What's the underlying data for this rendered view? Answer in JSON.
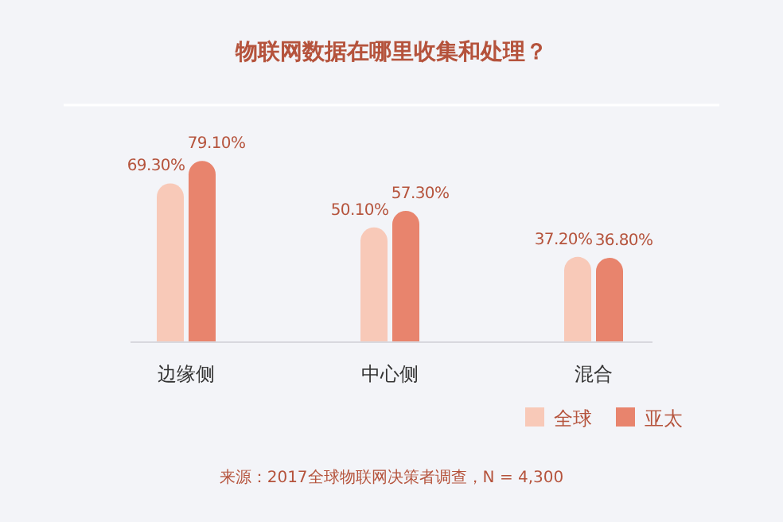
{
  "chart_data": {
    "type": "bar",
    "title": "物联网数据在哪里收集和处理？",
    "categories": [
      "边缘侧",
      "中心侧",
      "混合"
    ],
    "series": [
      {
        "name": "全球",
        "color": "#f8c9b8",
        "values": [
          69.3,
          50.1,
          37.2
        ],
        "value_labels": [
          "69.30%",
          "50.10%",
          "37.20%"
        ]
      },
      {
        "name": "亚太",
        "color": "#e8846d",
        "values": [
          79.1,
          57.3,
          36.8
        ],
        "value_labels": [
          "79.10%",
          "57.30%",
          "36.80%"
        ]
      }
    ],
    "legend": "bottom right",
    "annotations": [
      "来源：2017全球物联网决策者调查，N = 4,300"
    ]
  }
}
